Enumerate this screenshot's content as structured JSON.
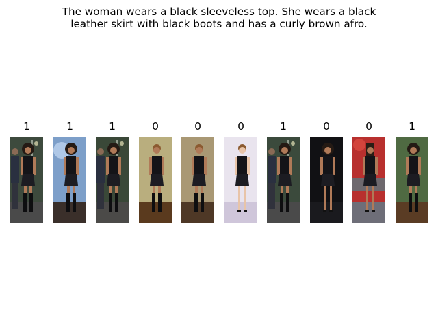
{
  "caption": {
    "line1": "The woman wears a black sleeveless top. She wears a black",
    "line2": "leather skirt with black boots and has a curly brown afro."
  },
  "images": [
    {
      "label": "1",
      "scene": "dark-street",
      "bg": "#3d4a3d",
      "floor": "#4a4a4a",
      "hair": "afro",
      "legs": "boots",
      "extra": "man"
    },
    {
      "label": "1",
      "scene": "blue-light",
      "bg": "#7d9fc9",
      "floor": "#3a2f2a",
      "hair": "afro",
      "legs": "boots",
      "extra": "blur"
    },
    {
      "label": "1",
      "scene": "dark-street",
      "bg": "#3a4838",
      "floor": "#4b4a48",
      "hair": "afro",
      "legs": "boots",
      "extra": "man"
    },
    {
      "label": "0",
      "scene": "indoor-warm",
      "bg": "#b9ae7e",
      "floor": "#5a3a1e",
      "hair": "short",
      "legs": "boots",
      "extra": "none"
    },
    {
      "label": "0",
      "scene": "indoor-warm",
      "bg": "#a99874",
      "floor": "#4e3826",
      "hair": "short",
      "legs": "boots",
      "extra": "none"
    },
    {
      "label": "0",
      "scene": "studio-white",
      "bg": "#e9e4ee",
      "floor": "#cfc6da",
      "hair": "short",
      "legs": "heels",
      "extra": "none"
    },
    {
      "label": "1",
      "scene": "dark-street",
      "bg": "#3b4a3c",
      "floor": "#4a4a4a",
      "hair": "afro",
      "legs": "boots",
      "extra": "man"
    },
    {
      "label": "0",
      "scene": "night",
      "bg": "#111114",
      "floor": "#1a1a1e",
      "hair": "afro",
      "legs": "heels",
      "extra": "none"
    },
    {
      "label": "0",
      "scene": "stage",
      "bg": "#b8302e",
      "floor": "#6e6e78",
      "hair": "long",
      "legs": "heels",
      "extra": "none"
    },
    {
      "label": "1",
      "scene": "stage-green",
      "bg": "#4f6a42",
      "floor": "#5a3c24",
      "hair": "afro",
      "legs": "boots",
      "extra": "none"
    }
  ]
}
